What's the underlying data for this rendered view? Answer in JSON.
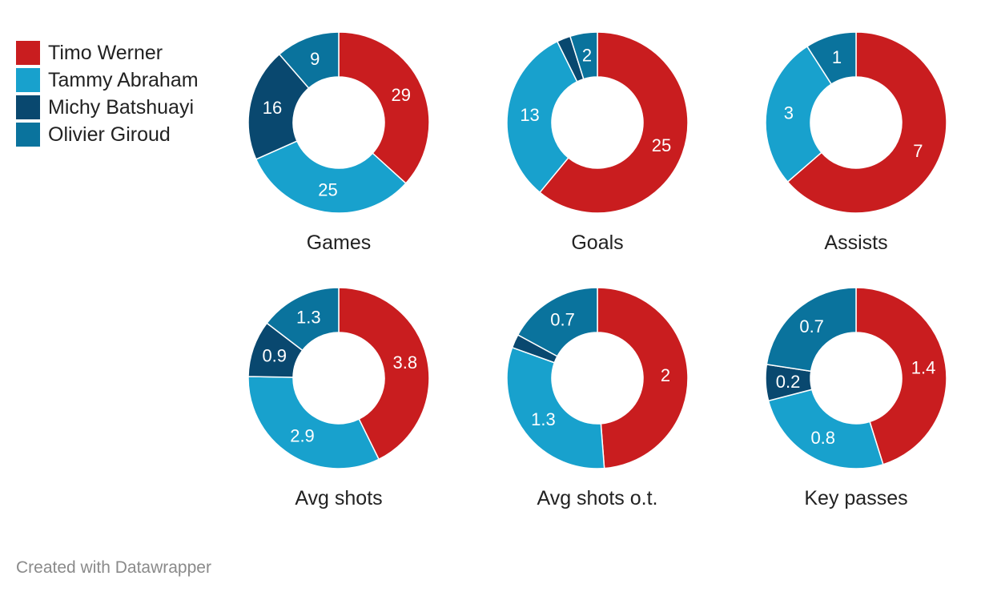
{
  "legend": [
    {
      "name": "Timo Werner",
      "color": "#c91d1f"
    },
    {
      "name": "Tammy Abraham",
      "color": "#18a1cd"
    },
    {
      "name": "Michy Batshuayi",
      "color": "#09486f"
    },
    {
      "name": "Olivier Giroud",
      "color": "#0a739d"
    }
  ],
  "footer": "Created with Datawrapper",
  "chart_data": [
    {
      "type": "pie",
      "title": "Games",
      "categories": [
        "Timo Werner",
        "Tammy Abraham",
        "Michy Batshuayi",
        "Olivier Giroud"
      ],
      "values": [
        29,
        25,
        16,
        9
      ],
      "labels": [
        "29",
        "25",
        "16",
        "9"
      ]
    },
    {
      "type": "pie",
      "title": "Goals",
      "categories": [
        "Timo Werner",
        "Tammy Abraham",
        "Michy Batshuayi",
        "Olivier Giroud"
      ],
      "values": [
        25,
        13,
        1,
        2
      ],
      "labels": [
        "25",
        "13",
        "",
        "2"
      ]
    },
    {
      "type": "pie",
      "title": "Assists",
      "categories": [
        "Timo Werner",
        "Tammy Abraham",
        "Michy Batshuayi",
        "Olivier Giroud"
      ],
      "values": [
        7,
        3,
        0,
        1
      ],
      "labels": [
        "7",
        "3",
        "",
        "1"
      ]
    },
    {
      "type": "pie",
      "title": "Avg shots",
      "categories": [
        "Timo Werner",
        "Tammy Abraham",
        "Michy Batshuayi",
        "Olivier Giroud"
      ],
      "values": [
        3.8,
        2.9,
        0.9,
        1.3
      ],
      "labels": [
        "3.8",
        "2.9",
        "0.9",
        "1.3"
      ]
    },
    {
      "type": "pie",
      "title": "Avg shots o.t.",
      "categories": [
        "Timo Werner",
        "Tammy Abraham",
        "Michy Batshuayi",
        "Olivier Giroud"
      ],
      "values": [
        2,
        1.3,
        0.1,
        0.7
      ],
      "labels": [
        "2",
        "1.3",
        "",
        "0.7"
      ]
    },
    {
      "type": "pie",
      "title": "Key passes",
      "categories": [
        "Timo Werner",
        "Tammy Abraham",
        "Michy Batshuayi",
        "Olivier Giroud"
      ],
      "values": [
        1.4,
        0.8,
        0.2,
        0.7
      ],
      "labels": [
        "1.4",
        "0.8",
        "0.2",
        "0.7"
      ]
    }
  ]
}
